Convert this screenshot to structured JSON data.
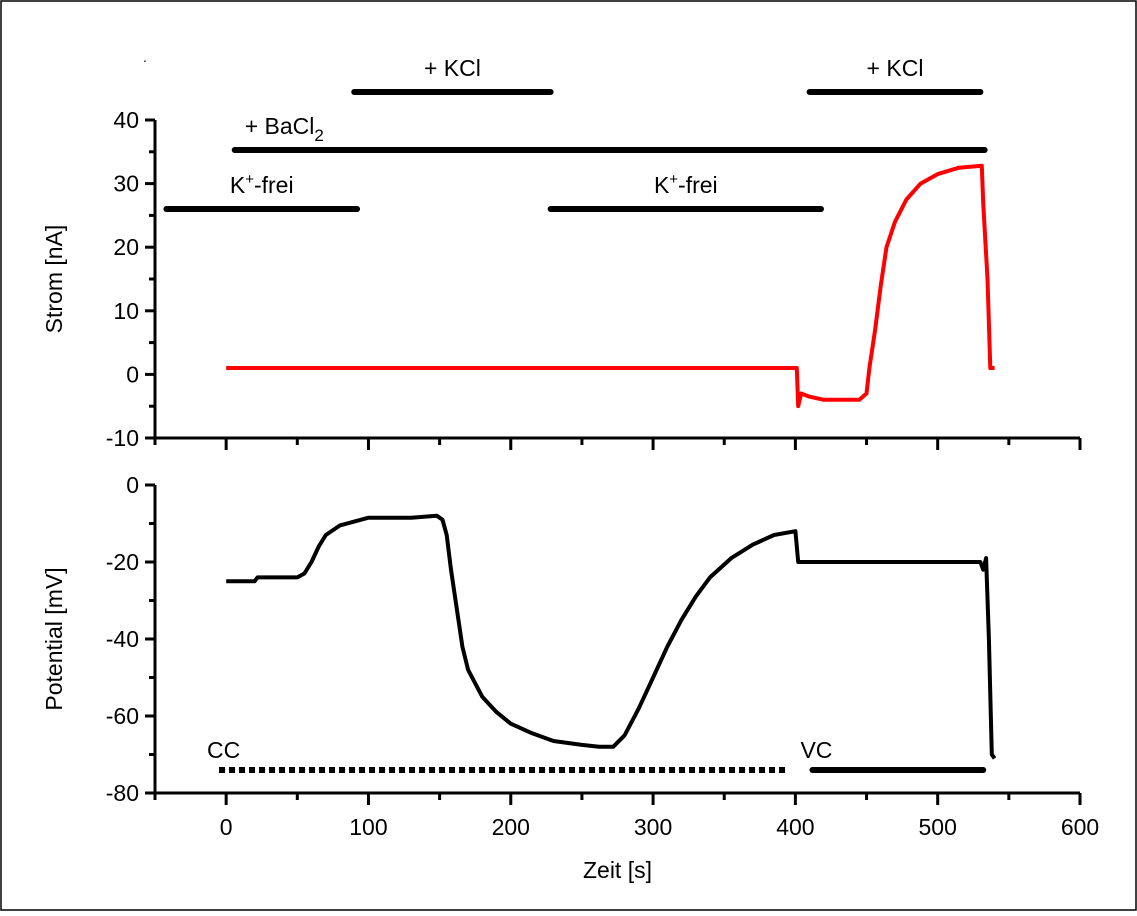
{
  "chart_data": [
    {
      "type": "line",
      "id": "current",
      "xlabel": "",
      "ylabel": "Strom [nA]",
      "xlim": [
        -50,
        600
      ],
      "ylim": [
        -10,
        40
      ],
      "y_ticks": [
        -10,
        0,
        10,
        20,
        30,
        40
      ],
      "x_ticks": [
        0,
        100,
        200,
        300,
        400,
        500,
        600
      ],
      "series": [
        {
          "color": "#ff0000",
          "points": [
            [
              0,
              1
            ],
            [
              100,
              1
            ],
            [
              200,
              1
            ],
            [
              300,
              1
            ],
            [
              400,
              1
            ],
            [
              401,
              1
            ],
            [
              402,
              -5
            ],
            [
              404,
              -3
            ],
            [
              410,
              -3.5
            ],
            [
              420,
              -4
            ],
            [
              430,
              -4
            ],
            [
              435,
              -4
            ],
            [
              445,
              -4
            ],
            [
              450,
              -3
            ],
            [
              452,
              1
            ],
            [
              456,
              7
            ],
            [
              460,
              14
            ],
            [
              464,
              20
            ],
            [
              470,
              24
            ],
            [
              478,
              27.5
            ],
            [
              488,
              30
            ],
            [
              500,
              31.5
            ],
            [
              515,
              32.5
            ],
            [
              531,
              32.8
            ],
            [
              532,
              27
            ],
            [
              535,
              15
            ],
            [
              537,
              1
            ],
            [
              540,
              1
            ]
          ]
        }
      ],
      "annotations": [
        {
          "text": "+ KCl",
          "x_start": 90,
          "x_end": 228,
          "level": 1
        },
        {
          "text": "+ KCl",
          "x_start": 410,
          "x_end": 530,
          "level": 1
        },
        {
          "text": "+ BaCl",
          "subscript": "2",
          "x_start": 6,
          "x_end": 533,
          "level": 2
        },
        {
          "text": "K",
          "superscript": "+",
          "suffix": "-frei",
          "x_start": -42,
          "x_end": 92,
          "level": 3
        },
        {
          "text": "K",
          "superscript": "+",
          "suffix": "-frei",
          "x_start": 228,
          "x_end": 418,
          "level": 3
        }
      ]
    },
    {
      "type": "line",
      "id": "potential",
      "xlabel": "Zeit [s]",
      "ylabel": "Potential [mV]",
      "xlim": [
        -50,
        600
      ],
      "ylim": [
        -80,
        0
      ],
      "y_ticks": [
        -80,
        -60,
        -40,
        -20,
        0
      ],
      "x_ticks": [
        0,
        100,
        200,
        300,
        400,
        500,
        600
      ],
      "series": [
        {
          "color": "#000000",
          "points": [
            [
              0,
              -25
            ],
            [
              20,
              -25
            ],
            [
              22,
              -24
            ],
            [
              50,
              -24
            ],
            [
              55,
              -23
            ],
            [
              60,
              -20
            ],
            [
              65,
              -16
            ],
            [
              70,
              -13
            ],
            [
              80,
              -10.5
            ],
            [
              90,
              -9.5
            ],
            [
              100,
              -8.5
            ],
            [
              130,
              -8.5
            ],
            [
              148,
              -8
            ],
            [
              152,
              -9
            ],
            [
              155,
              -13
            ],
            [
              158,
              -22
            ],
            [
              162,
              -32
            ],
            [
              166,
              -42
            ],
            [
              170,
              -48
            ],
            [
              180,
              -55
            ],
            [
              190,
              -59
            ],
            [
              200,
              -62
            ],
            [
              215,
              -64.5
            ],
            [
              230,
              -66.5
            ],
            [
              250,
              -67.5
            ],
            [
              262,
              -68
            ],
            [
              272,
              -68
            ],
            [
              280,
              -65
            ],
            [
              290,
              -58
            ],
            [
              300,
              -50
            ],
            [
              310,
              -42
            ],
            [
              320,
              -35
            ],
            [
              330,
              -29
            ],
            [
              340,
              -24
            ],
            [
              355,
              -19
            ],
            [
              370,
              -15.5
            ],
            [
              385,
              -13
            ],
            [
              400,
              -12
            ],
            [
              402,
              -20
            ],
            [
              530,
              -20
            ],
            [
              532,
              -22
            ],
            [
              534,
              -19
            ],
            [
              536,
              -40
            ],
            [
              538,
              -70
            ],
            [
              540,
              -71
            ]
          ]
        }
      ],
      "annotations": [
        {
          "text": "CC",
          "x_start": -5,
          "x_end": 395,
          "style": "dotted"
        },
        {
          "text": "VC",
          "x_start": 412,
          "x_end": 532,
          "style": "solid"
        }
      ]
    }
  ]
}
